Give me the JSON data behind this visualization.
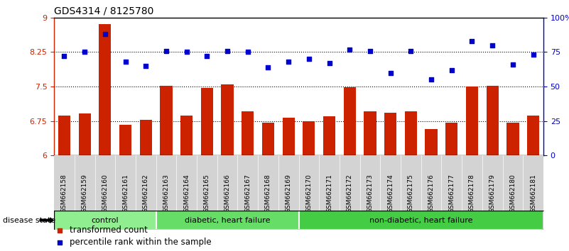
{
  "title": "GDS4314 / 8125780",
  "samples": [
    "GSM662158",
    "GSM662159",
    "GSM662160",
    "GSM662161",
    "GSM662162",
    "GSM662163",
    "GSM662164",
    "GSM662165",
    "GSM662166",
    "GSM662167",
    "GSM662168",
    "GSM662169",
    "GSM662170",
    "GSM662171",
    "GSM662172",
    "GSM662173",
    "GSM662174",
    "GSM662175",
    "GSM662176",
    "GSM662177",
    "GSM662178",
    "GSM662179",
    "GSM662180",
    "GSM662181"
  ],
  "bar_values": [
    6.87,
    6.92,
    8.86,
    6.67,
    6.78,
    7.52,
    6.87,
    7.47,
    7.55,
    6.97,
    6.72,
    6.82,
    6.75,
    6.86,
    7.49,
    6.96,
    6.93,
    6.96,
    6.58,
    6.72,
    7.5,
    7.52,
    6.71,
    6.87
  ],
  "percentile_values": [
    72,
    75,
    88,
    68,
    65,
    76,
    75,
    72,
    76,
    75,
    64,
    68,
    70,
    67,
    77,
    76,
    60,
    76,
    55,
    62,
    83,
    80,
    66,
    73
  ],
  "bar_color": "#cc2200",
  "dot_color": "#0000cc",
  "ylim_left": [
    6,
    9
  ],
  "ylim_right": [
    0,
    100
  ],
  "yticks_left": [
    6,
    6.75,
    7.5,
    8.25,
    9
  ],
  "ytick_labels_left": [
    "6",
    "6.75",
    "7.5",
    "8.25",
    "9"
  ],
  "yticks_right": [
    0,
    25,
    50,
    75,
    100
  ],
  "ytick_labels_right": [
    "0",
    "25",
    "50",
    "75",
    "100%"
  ],
  "hlines": [
    6.75,
    7.5,
    8.25
  ],
  "groups": [
    {
      "label": "control",
      "start": 0,
      "end": 4,
      "color": "#90ee90"
    },
    {
      "label": "diabetic, heart failure",
      "start": 5,
      "end": 11,
      "color": "#66dd66"
    },
    {
      "label": "non-diabetic, heart failure",
      "start": 12,
      "end": 23,
      "color": "#44cc44"
    }
  ],
  "disease_state_label": "disease state",
  "legend_items": [
    {
      "label": "transformed count",
      "color": "#cc2200"
    },
    {
      "label": "percentile rank within the sample",
      "color": "#0000cc"
    }
  ],
  "gray_bg": "#d3d3d3",
  "plot_bg": "#ffffff",
  "tick_label_fontsize": 6.5,
  "bar_width": 0.6
}
